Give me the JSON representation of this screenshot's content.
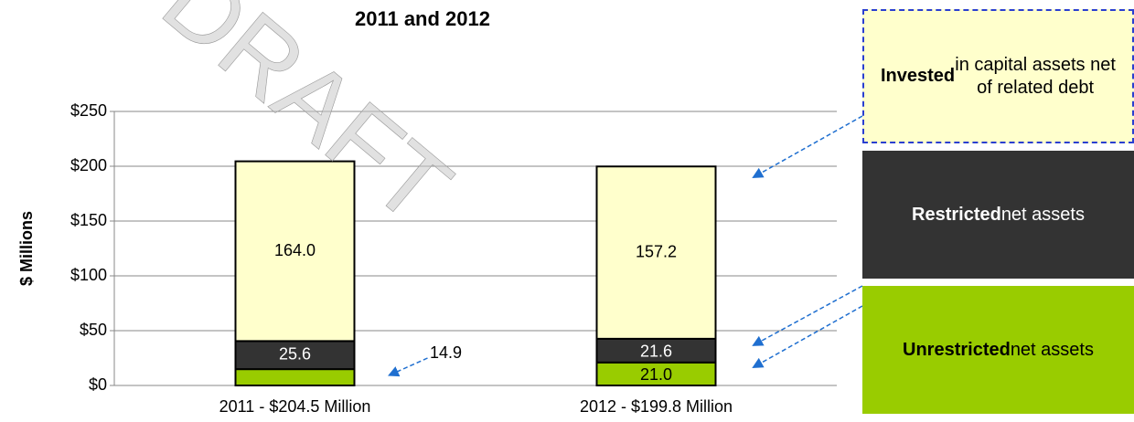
{
  "chart_data": {
    "type": "stacked-bar",
    "title": "2011 and 2012",
    "watermark": "DRAFT",
    "y_label": "$ Millions",
    "categories": [
      "2011 - $204.5 Million",
      "2012 - $199.8 Million"
    ],
    "series": [
      {
        "name": "Unrestricted net assets",
        "color": "#99cc00",
        "values": [
          14.9,
          21.0
        ],
        "value_labels": [
          "14.9",
          "21.0"
        ]
      },
      {
        "name": "Restricted net assets",
        "color": "#333333",
        "values": [
          25.6,
          21.6
        ],
        "value_labels": [
          "25.6",
          "21.6"
        ]
      },
      {
        "name": "Invested in capital assets net of related debt",
        "color": "#ffffcc",
        "values": [
          164.0,
          157.2
        ],
        "value_labels": [
          "164.0",
          "157.2"
        ]
      }
    ],
    "ylim": [
      0,
      250
    ],
    "yticks": [
      {
        "value": 0,
        "label": "$0"
      },
      {
        "value": 50,
        "label": "$50"
      },
      {
        "value": 100,
        "label": "$100"
      },
      {
        "value": 150,
        "label": "$150"
      },
      {
        "value": 200,
        "label": "$200"
      },
      {
        "value": 250,
        "label": "$250"
      }
    ],
    "grid": true
  }
}
